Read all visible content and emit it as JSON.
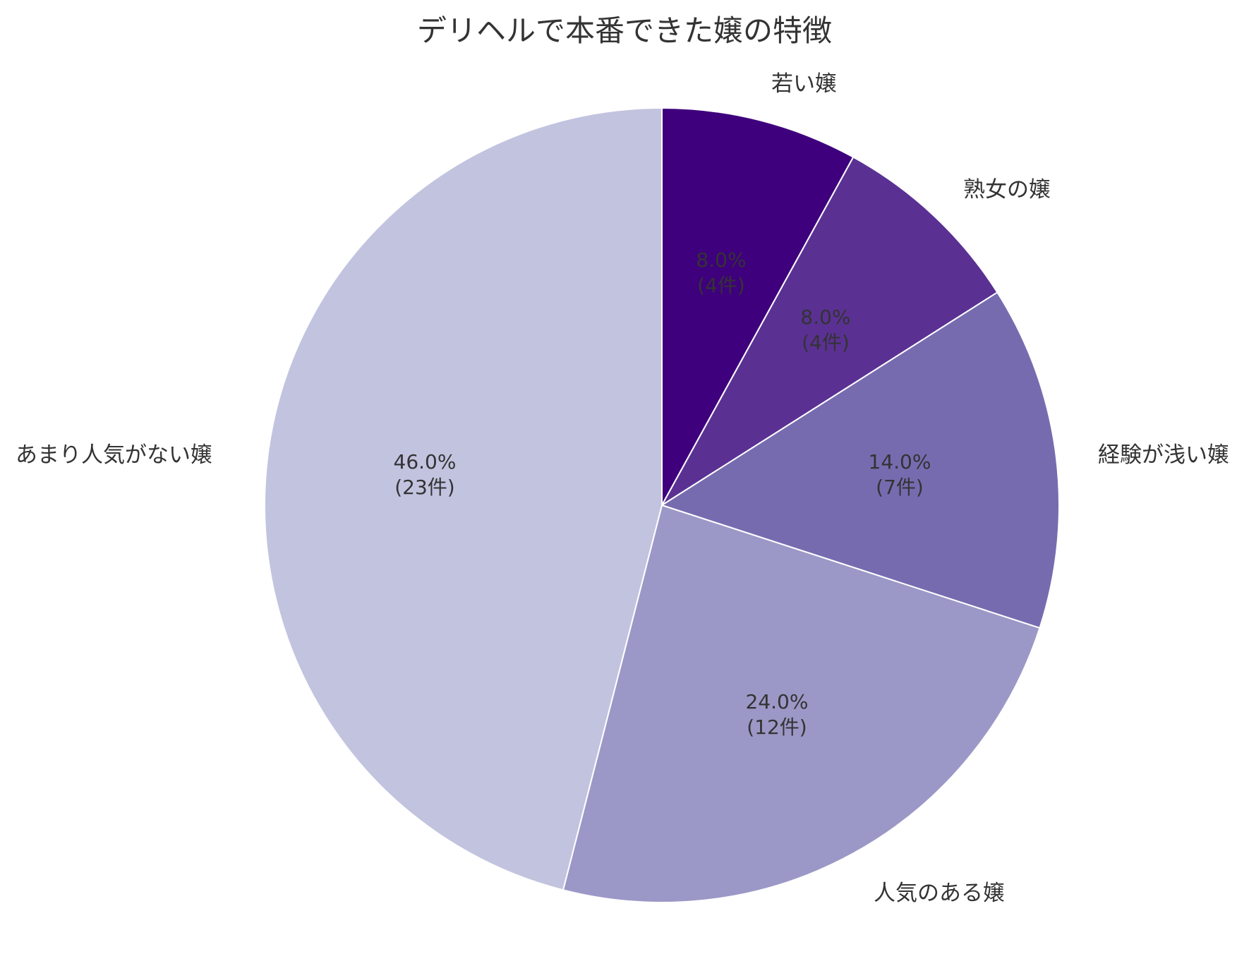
{
  "chart_data": {
    "type": "pie",
    "title": "デリヘルで本番できた嬢の特徴",
    "start_angle": 90,
    "direction": "clockwise",
    "categories": [
      "若い嬢",
      "熟女の嬢",
      "経験が浅い嬢",
      "人気のある嬢",
      "あまり人気がない嬢"
    ],
    "values": [
      4,
      4,
      7,
      12,
      23
    ],
    "percentages": [
      8.0,
      8.0,
      14.0,
      24.0,
      46.0
    ],
    "colors": [
      "#3f007d",
      "#5a3193",
      "#776bb0",
      "#9b98c7",
      "#c2c3df"
    ],
    "slices": [
      {
        "label": "若い嬢",
        "count": 4,
        "pct_text": "8.0%",
        "count_text": "(4件)",
        "color": "#3f007d"
      },
      {
        "label": "熟女の嬢",
        "count": 4,
        "pct_text": "8.0%",
        "count_text": "(4件)",
        "color": "#5a3193"
      },
      {
        "label": "経験が浅い嬢",
        "count": 7,
        "pct_text": "14.0%",
        "count_text": "(7件)",
        "color": "#776bb0"
      },
      {
        "label": "人気のある嬢",
        "count": 12,
        "pct_text": "24.0%",
        "count_text": "(12件)",
        "color": "#9b98c7"
      },
      {
        "label": "あまり人気がない嬢",
        "count": 23,
        "pct_text": "46.0%",
        "count_text": "(23件)",
        "color": "#c2c3df"
      }
    ],
    "legend": "none",
    "edge_color": "#ffffff"
  }
}
